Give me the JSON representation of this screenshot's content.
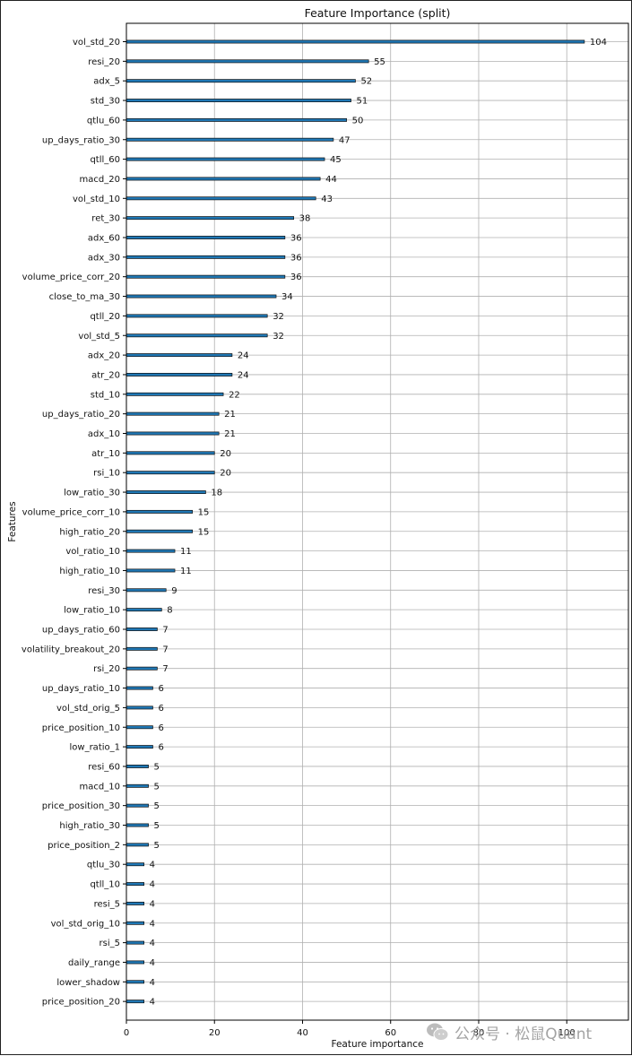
{
  "chart_data": {
    "type": "bar",
    "orientation": "horizontal",
    "title": "Feature Importance (split)",
    "xlabel": "Feature importance",
    "ylabel": "Features",
    "xlim": [
      0,
      114
    ],
    "xticks": [
      0,
      20,
      40,
      60,
      80,
      100
    ],
    "grid": true,
    "categories": [
      "vol_std_20",
      "resi_20",
      "adx_5",
      "std_30",
      "qtlu_60",
      "up_days_ratio_30",
      "qtll_60",
      "macd_20",
      "vol_std_10",
      "ret_30",
      "adx_60",
      "adx_30",
      "volume_price_corr_20",
      "close_to_ma_30",
      "qtll_20",
      "vol_std_5",
      "adx_20",
      "atr_20",
      "std_10",
      "up_days_ratio_20",
      "adx_10",
      "atr_10",
      "rsi_10",
      "low_ratio_30",
      "volume_price_corr_10",
      "high_ratio_20",
      "vol_ratio_10",
      "high_ratio_10",
      "resi_30",
      "low_ratio_10",
      "up_days_ratio_60",
      "volatility_breakout_20",
      "rsi_20",
      "up_days_ratio_10",
      "vol_std_orig_5",
      "price_position_10",
      "low_ratio_1",
      "resi_60",
      "macd_10",
      "price_position_30",
      "high_ratio_30",
      "price_position_2",
      "qtlu_30",
      "qtll_10",
      "resi_5",
      "vol_std_orig_10",
      "rsi_5",
      "daily_range",
      "lower_shadow",
      "price_position_20"
    ],
    "values": [
      104,
      55,
      52,
      51,
      50,
      47,
      45,
      44,
      43,
      38,
      36,
      36,
      36,
      34,
      32,
      32,
      24,
      24,
      22,
      21,
      21,
      20,
      20,
      18,
      15,
      15,
      11,
      11,
      9,
      8,
      7,
      7,
      7,
      6,
      6,
      6,
      6,
      5,
      5,
      5,
      5,
      5,
      4,
      4,
      4,
      4,
      4,
      4,
      4,
      4
    ]
  },
  "watermark": {
    "text": "公众号 · 松鼠Quant",
    "icon": "wechat-icon"
  }
}
